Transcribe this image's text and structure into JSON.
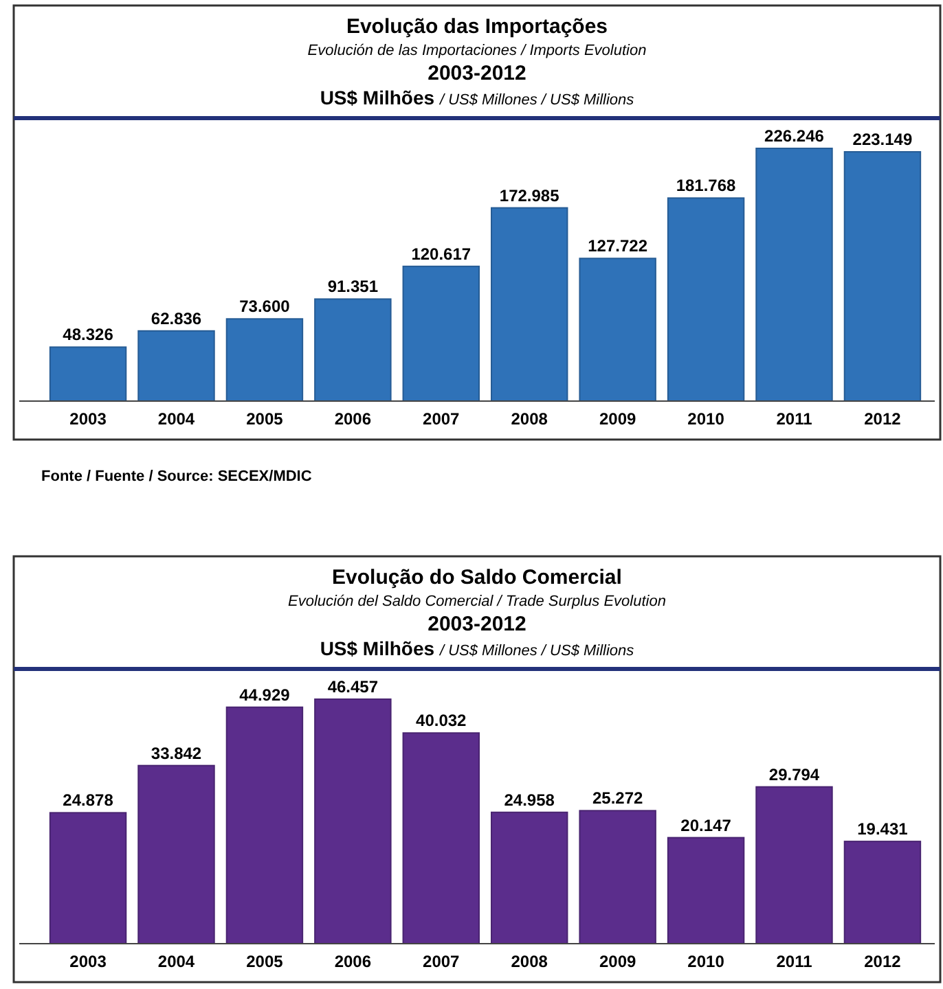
{
  "chart_data": [
    {
      "type": "bar",
      "title": "Evolução das Importações",
      "subtitle": "Evolución de las Importaciones / Imports Evolution",
      "ylabel": "US$ Milhões / US$ Millones / US$ Millions",
      "annotations": [
        "2003-2012",
        "Fonte / Fuente / Source: SECEX/MDIC"
      ],
      "categories": [
        "2003",
        "2004",
        "2005",
        "2006",
        "2007",
        "2008",
        "2009",
        "2010",
        "2011",
        "2012"
      ],
      "values": [
        48326,
        62836,
        73600,
        91351,
        120617,
        172985,
        127722,
        181768,
        226246,
        223149
      ],
      "value_labels": [
        "48.326",
        "62.836",
        "73.600",
        "91.351",
        "120.617",
        "172.985",
        "127.722",
        "181.768",
        "226.246",
        "223.149"
      ],
      "color": "#2f72b8"
    },
    {
      "type": "bar",
      "title": "Evolução do Saldo Comercial",
      "subtitle": "Evolución del Saldo Comercial / Trade Surplus Evolution",
      "ylabel": "US$ Milhões / US$ Millones / US$ Millions",
      "annotations": [
        "2003-2012"
      ],
      "categories": [
        "2003",
        "2004",
        "2005",
        "2006",
        "2007",
        "2008",
        "2009",
        "2010",
        "2011",
        "2012"
      ],
      "values": [
        24878,
        33842,
        44929,
        46457,
        40032,
        24958,
        25272,
        20147,
        29794,
        19431
      ],
      "value_labels": [
        "24.878",
        "33.842",
        "44.929",
        "46.457",
        "40.032",
        "24.958",
        "25.272",
        "20.147",
        "29.794",
        "19.431"
      ],
      "color": "#5b2d8c"
    }
  ]
}
